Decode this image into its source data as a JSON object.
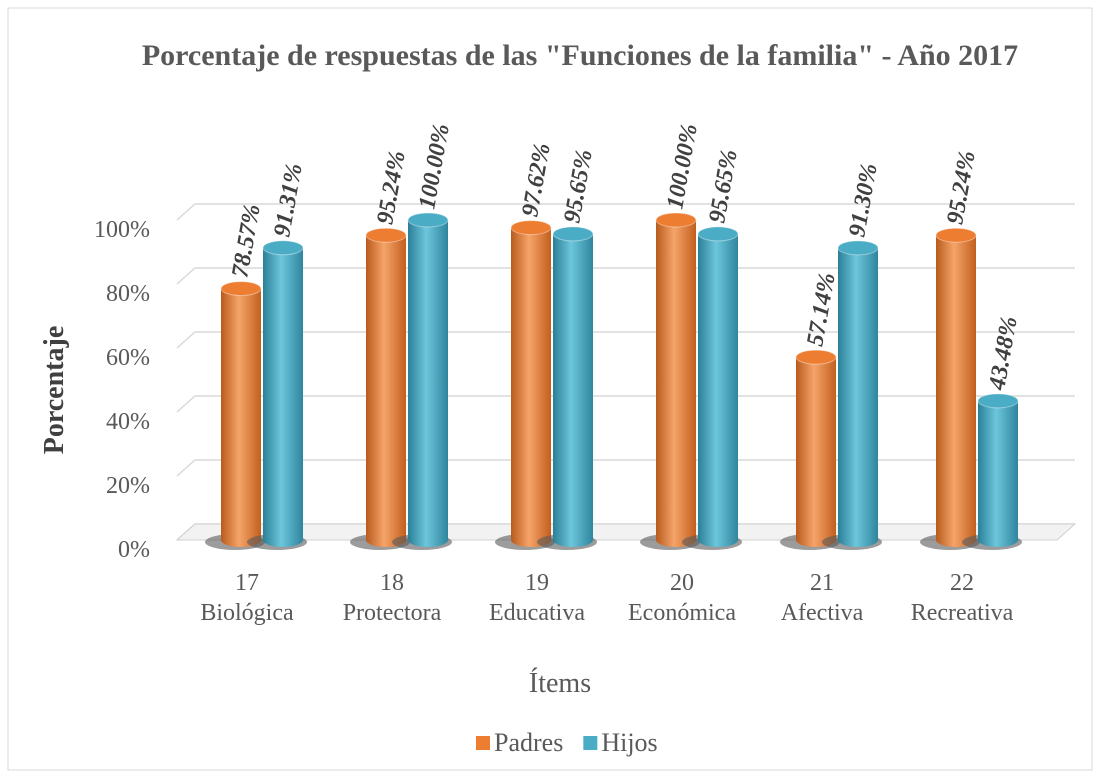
{
  "chart_data": {
    "type": "bar3d",
    "title": "Porcentaje de respuestas de las \"Funciones de la familia\" - Año 2017",
    "x_label": "Ítems",
    "y_label": "Porcentaje",
    "categories": [
      [
        "17",
        "Biológica"
      ],
      [
        "18",
        "Protectora"
      ],
      [
        "19",
        "Educativa"
      ],
      [
        "20",
        "Económica"
      ],
      [
        "21",
        "Afectiva"
      ],
      [
        "22",
        "Recreativa"
      ]
    ],
    "series": [
      {
        "name": "Padres",
        "color": "#ed7d31",
        "values": [
          78.57,
          95.24,
          97.62,
          100,
          57.14,
          95.24
        ],
        "value_labels": [
          "78.57%",
          "95.24%",
          "97.62%",
          "100.00%",
          "57.14%",
          "95.24%"
        ]
      },
      {
        "name": "Hijos",
        "color": "#4bacc6",
        "values": [
          91.31,
          100,
          95.65,
          95.65,
          91.3,
          43.48
        ],
        "value_labels": [
          "91.31%",
          "100.00%",
          "95.65%",
          "95.65%",
          "91.30%",
          "43.48%"
        ]
      }
    ],
    "ylim": [
      0,
      100
    ],
    "yticks": [
      {
        "value": 0,
        "label": "0%"
      },
      {
        "value": 20,
        "label": "20%"
      },
      {
        "value": 40,
        "label": "40%"
      },
      {
        "value": 60,
        "label": "60%"
      },
      {
        "value": 80,
        "label": "80%"
      },
      {
        "value": 100,
        "label": "100%"
      }
    ],
    "grid": true,
    "legend": "bottom"
  }
}
